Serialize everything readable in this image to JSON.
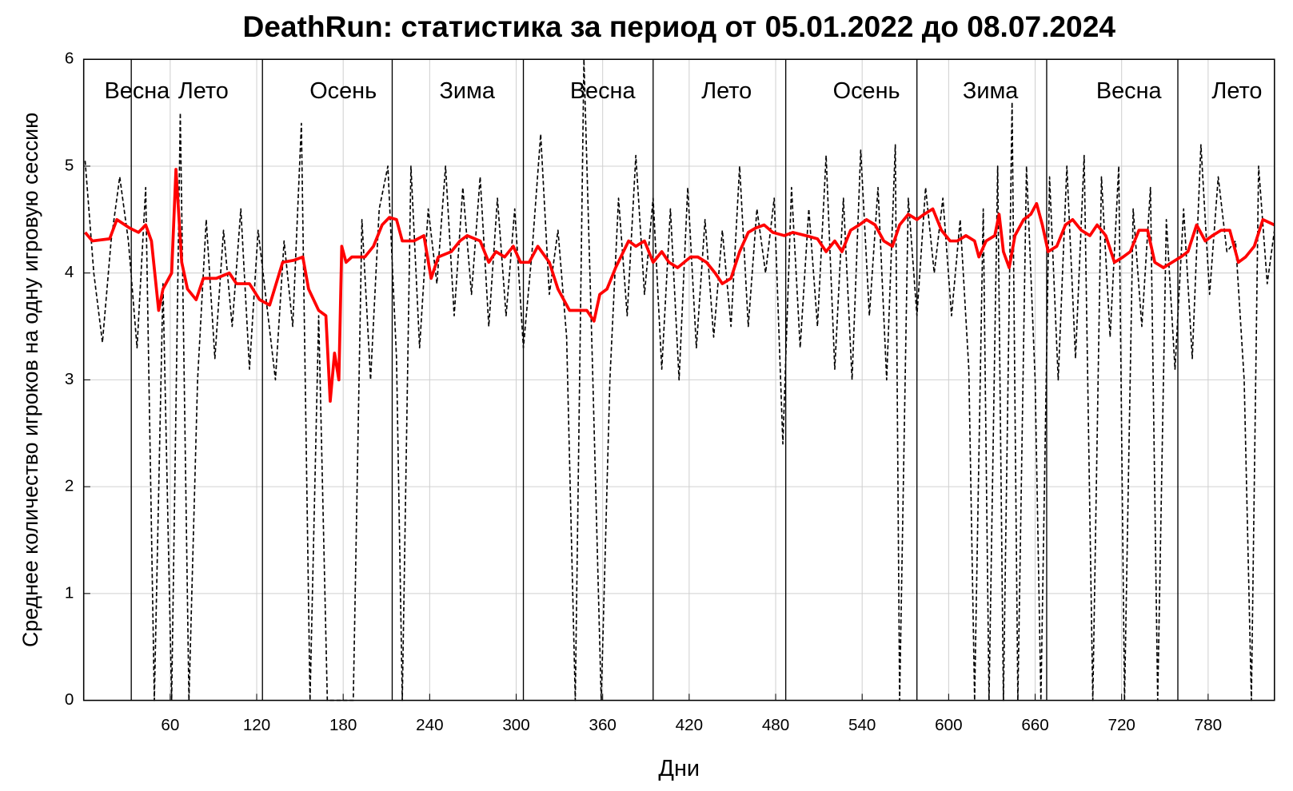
{
  "chart_data": {
    "type": "line",
    "title": "DeathRun: статистика за период от 05.01.2022 до 08.07.2024",
    "x_label": "Дни",
    "y_label": "Среднее количество игроков на одну игровую сессию",
    "xlim": [
      0,
      826
    ],
    "ylim": [
      0,
      6
    ],
    "xticks": [
      60,
      120,
      180,
      240,
      300,
      360,
      420,
      480,
      540,
      600,
      660,
      720,
      780
    ],
    "yticks": [
      0,
      1,
      2,
      3,
      4,
      5,
      6
    ],
    "grid": true,
    "season_lines": [
      33,
      124,
      214,
      305,
      395,
      487,
      578,
      668,
      759
    ],
    "season_labels": [
      {
        "text": "Весна",
        "x": 37
      },
      {
        "text": "Лето",
        "x": 83
      },
      {
        "text": "Осень",
        "x": 180
      },
      {
        "text": "Зима",
        "x": 266
      },
      {
        "text": "Весна",
        "x": 360
      },
      {
        "text": "Лето",
        "x": 446
      },
      {
        "text": "Осень",
        "x": 543
      },
      {
        "text": "Зима",
        "x": 629
      },
      {
        "text": "Весна",
        "x": 725
      },
      {
        "text": "Лето",
        "x": 800
      }
    ],
    "series": [
      {
        "color": "#000000",
        "dashed": true,
        "x": [
          1,
          7,
          13,
          19,
          25,
          31,
          37,
          43,
          49,
          55,
          61,
          67,
          73,
          79,
          85,
          91,
          97,
          103,
          109,
          115,
          121,
          127,
          133,
          139,
          145,
          151,
          157,
          163,
          169,
          175,
          181,
          187,
          193,
          199,
          205,
          211,
          217,
          221,
          227,
          233,
          239,
          245,
          251,
          257,
          263,
          269,
          275,
          281,
          287,
          293,
          299,
          305,
          311,
          317,
          323,
          329,
          335,
          341,
          347,
          353,
          359,
          365,
          371,
          377,
          383,
          389,
          395,
          401,
          407,
          413,
          419,
          425,
          431,
          437,
          443,
          449,
          455,
          461,
          467,
          473,
          479,
          485,
          491,
          497,
          503,
          509,
          515,
          521,
          527,
          533,
          539,
          545,
          551,
          557,
          563,
          566,
          572,
          578,
          584,
          590,
          596,
          602,
          608,
          614,
          618,
          624,
          628,
          634,
          638,
          644,
          648,
          654,
          660,
          664,
          670,
          676,
          682,
          688,
          694,
          700,
          706,
          712,
          718,
          722,
          728,
          734,
          740,
          745,
          751,
          757,
          763,
          769,
          775,
          781,
          787,
          793,
          799,
          805,
          810,
          815,
          821,
          826
        ],
        "values": [
          5.05,
          4.0,
          3.35,
          4.3,
          4.9,
          4.3,
          3.3,
          4.8,
          0,
          3.9,
          0,
          5.5,
          0,
          3.0,
          4.5,
          3.2,
          4.4,
          3.5,
          4.6,
          3.1,
          4.4,
          3.7,
          3.0,
          4.3,
          3.5,
          5.4,
          0,
          3.6,
          0,
          0,
          0,
          0,
          4.5,
          3.0,
          4.6,
          5.0,
          3.2,
          0,
          5.0,
          3.3,
          4.6,
          3.9,
          5.0,
          3.6,
          4.8,
          3.8,
          4.9,
          3.5,
          4.7,
          3.6,
          4.6,
          3.3,
          4.2,
          5.3,
          3.8,
          4.4,
          3.4,
          0,
          6.0,
          3.1,
          0,
          3.0,
          4.7,
          3.6,
          5.1,
          3.8,
          4.7,
          3.1,
          4.6,
          3.0,
          4.8,
          3.3,
          4.5,
          3.4,
          4.4,
          3.5,
          5.0,
          3.5,
          4.6,
          4.0,
          4.7,
          2.4,
          4.8,
          3.3,
          4.6,
          3.5,
          5.1,
          3.1,
          4.7,
          3.0,
          5.15,
          3.6,
          4.8,
          3.0,
          5.2,
          0,
          4.7,
          3.6,
          4.8,
          4.0,
          4.7,
          3.6,
          4.5,
          3.1,
          0,
          4.6,
          0,
          5.0,
          0,
          5.6,
          0,
          5.0,
          3.0,
          0,
          4.9,
          3.0,
          5.0,
          3.2,
          5.1,
          0,
          4.9,
          3.4,
          5.0,
          0,
          4.6,
          3.5,
          4.8,
          0,
          4.5,
          3.1,
          4.6,
          3.2,
          5.2,
          3.8,
          4.9,
          4.2,
          4.3,
          3.0,
          0,
          5.0,
          3.9,
          4.4
        ]
      },
      {
        "color": "#ff0000",
        "dashed": false,
        "x": [
          1,
          6,
          18,
          23,
          32,
          38,
          43,
          47,
          52,
          55,
          61,
          64,
          68,
          72,
          78,
          83,
          92,
          101,
          106,
          115,
          122,
          129,
          138,
          146,
          152,
          156,
          163,
          168,
          171,
          174,
          177,
          179,
          182,
          186,
          195,
          201,
          207,
          212,
          217,
          221,
          229,
          236,
          241,
          246,
          255,
          261,
          266,
          275,
          281,
          286,
          292,
          298,
          303,
          309,
          315,
          323,
          329,
          337,
          344,
          349,
          354,
          358,
          363,
          369,
          378,
          383,
          389,
          395,
          401,
          406,
          412,
          421,
          426,
          432,
          438,
          443,
          449,
          455,
          461,
          466,
          472,
          478,
          486,
          492,
          501,
          509,
          515,
          521,
          526,
          532,
          538,
          543,
          549,
          555,
          561,
          566,
          572,
          578,
          583,
          589,
          595,
          601,
          606,
          612,
          618,
          621,
          626,
          632,
          635,
          638,
          642,
          646,
          652,
          657,
          661,
          665,
          669,
          675,
          681,
          686,
          692,
          698,
          703,
          709,
          715,
          721,
          726,
          732,
          738,
          743,
          749,
          755,
          761,
          766,
          772,
          778,
          783,
          789,
          795,
          801,
          806,
          812,
          818,
          826
        ],
        "values": [
          4.38,
          4.3,
          4.32,
          4.5,
          4.42,
          4.38,
          4.45,
          4.3,
          3.65,
          3.85,
          4.0,
          4.97,
          4.1,
          3.85,
          3.75,
          3.95,
          3.95,
          4.0,
          3.9,
          3.9,
          3.75,
          3.7,
          4.1,
          4.12,
          4.15,
          3.85,
          3.65,
          3.6,
          2.8,
          3.25,
          3.0,
          4.25,
          4.1,
          4.15,
          4.15,
          4.25,
          4.45,
          4.52,
          4.5,
          4.3,
          4.3,
          4.35,
          3.95,
          4.15,
          4.2,
          4.3,
          4.35,
          4.3,
          4.1,
          4.2,
          4.15,
          4.25,
          4.1,
          4.1,
          4.25,
          4.1,
          3.85,
          3.65,
          3.65,
          3.65,
          3.55,
          3.8,
          3.85,
          4.05,
          4.3,
          4.25,
          4.3,
          4.1,
          4.2,
          4.1,
          4.05,
          4.15,
          4.15,
          4.1,
          4.0,
          3.9,
          3.95,
          4.2,
          4.38,
          4.42,
          4.45,
          4.38,
          4.35,
          4.38,
          4.35,
          4.32,
          4.2,
          4.3,
          4.2,
          4.4,
          4.45,
          4.5,
          4.45,
          4.3,
          4.25,
          4.45,
          4.55,
          4.5,
          4.55,
          4.6,
          4.4,
          4.3,
          4.3,
          4.35,
          4.3,
          4.15,
          4.3,
          4.35,
          4.55,
          4.2,
          4.05,
          4.35,
          4.5,
          4.55,
          4.65,
          4.45,
          4.2,
          4.25,
          4.45,
          4.5,
          4.4,
          4.35,
          4.45,
          4.35,
          4.1,
          4.15,
          4.2,
          4.4,
          4.4,
          4.1,
          4.05,
          4.1,
          4.15,
          4.2,
          4.45,
          4.3,
          4.35,
          4.4,
          4.4,
          4.1,
          4.15,
          4.25,
          4.5,
          4.45
        ]
      }
    ]
  }
}
